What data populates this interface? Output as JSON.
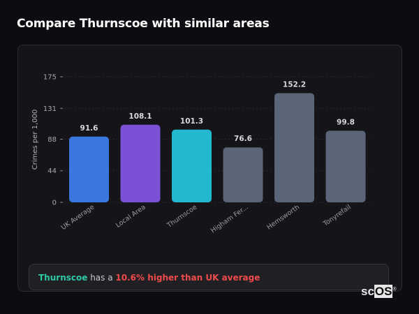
{
  "page": {
    "title": "Compare Thurnscoe with similar areas"
  },
  "summary": {
    "name": "Thurnscoe",
    "connector": "has a",
    "stat": "10.6% higher than UK average"
  },
  "logo": {
    "text_plain": "sc",
    "text_box": "OS",
    "mark": "®"
  },
  "colors": {
    "uk": "#3a78e0",
    "local": "#7b52d6",
    "focus": "#22b8d0",
    "other": "#5a6578",
    "highlight_name": "#2ec9a6",
    "highlight_stat": "#ef4b4b"
  },
  "chart_data": {
    "type": "bar",
    "categories": [
      "UK Average",
      "Local Area",
      "Thurnscoe",
      "Higham Fer...",
      "Hemsworth",
      "Tonyrefail"
    ],
    "values": [
      91.6,
      108.1,
      101.3,
      76.6,
      152.2,
      99.8
    ],
    "value_labels": [
      "91.6",
      "108.1",
      "101.3",
      "76.6",
      "152.2",
      "99.8"
    ],
    "bar_colors": [
      "#3a78e0",
      "#7b52d6",
      "#22b8d0",
      "#5a6578",
      "#5a6578",
      "#5a6578"
    ],
    "ylabel": "Crimes per 1,000",
    "xlabel": "",
    "yticks": [
      0,
      44,
      88,
      131,
      175
    ],
    "ylim": [
      0,
      175
    ],
    "grid": true
  }
}
